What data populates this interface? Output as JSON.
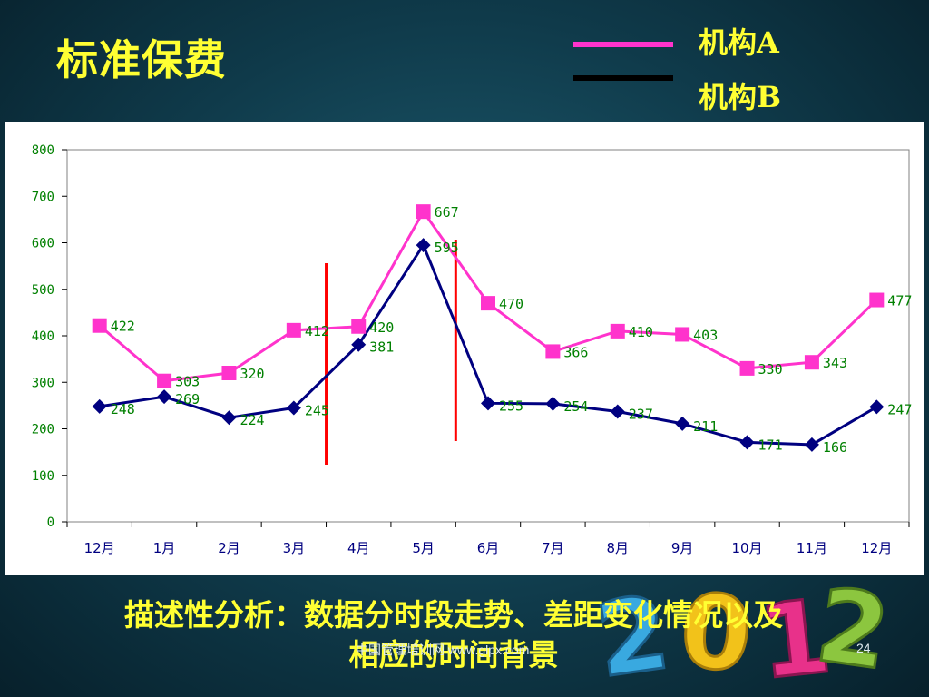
{
  "slide": {
    "title": "标准保费",
    "description_line1": "描述性分析：数据分时段走势、差距变化情况以及",
    "description_line2": "相应的时间背景",
    "footer_source": "中国管理培训网 www.glpx.com",
    "page_number": "24"
  },
  "legend": {
    "items": [
      {
        "label": "机构A",
        "color": "#ff33cc"
      },
      {
        "label": "机构B",
        "color": "#000000"
      }
    ]
  },
  "colors": {
    "series_a": "#ff33cc",
    "series_b": "#000080",
    "data_label": "#008000",
    "marker_line": "#ff0000",
    "title_text": "#ffff33"
  },
  "chart_data": {
    "type": "line",
    "categories": [
      "12月",
      "1月",
      "2月",
      "3月",
      "4月",
      "5月",
      "6月",
      "7月",
      "8月",
      "9月",
      "10月",
      "11月",
      "12月"
    ],
    "series": [
      {
        "name": "机构A",
        "marker": "square",
        "values": [
          422,
          303,
          320,
          412,
          420,
          667,
          470,
          366,
          410,
          403,
          330,
          343,
          477
        ]
      },
      {
        "name": "机构B",
        "marker": "diamond",
        "values": [
          248,
          269,
          224,
          245,
          381,
          595,
          255,
          254,
          237,
          211,
          171,
          166,
          247
        ]
      }
    ],
    "ylim": [
      0,
      800
    ],
    "yticks": [
      0,
      100,
      200,
      300,
      400,
      500,
      600,
      700,
      800
    ],
    "vertical_markers_between": [
      [
        3,
        4
      ],
      [
        5,
        6
      ]
    ],
    "grid": false,
    "title": "",
    "xlabel": "",
    "ylabel": ""
  }
}
